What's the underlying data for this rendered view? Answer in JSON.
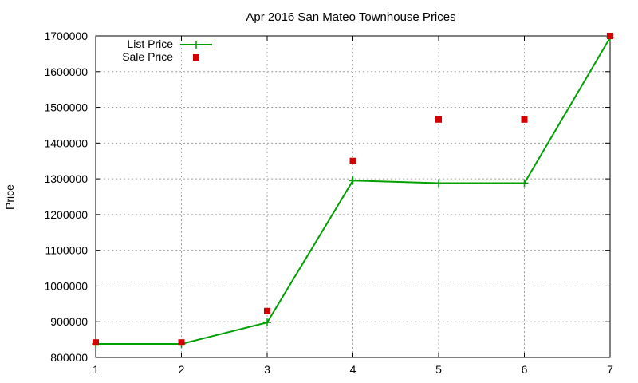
{
  "chart_data": {
    "type": "line",
    "title": "Apr 2016 San Mateo Townhouse Prices",
    "xlabel": "",
    "ylabel": "Price",
    "x": [
      1,
      2,
      3,
      4,
      5,
      6,
      7
    ],
    "xlim": [
      1,
      7
    ],
    "ylim": [
      800000,
      1700000
    ],
    "xticks": [
      "1",
      "2",
      "3",
      "4",
      "5",
      "6",
      "7"
    ],
    "yticks": [
      "800000",
      "900000",
      "1000000",
      "1100000",
      "1200000",
      "1300000",
      "1400000",
      "1500000",
      "1600000",
      "1700000"
    ],
    "grid": true,
    "legend_position": "top-left",
    "series": [
      {
        "name": "List Price",
        "style": "line",
        "color": "#00a000",
        "values": [
          838000,
          838000,
          898000,
          1295000,
          1288000,
          1288000,
          1695000
        ]
      },
      {
        "name": "Sale Price",
        "style": "points",
        "color": "#d00000",
        "values": [
          842000,
          842000,
          930000,
          1350000,
          1466000,
          1466000,
          1700000
        ]
      }
    ]
  }
}
